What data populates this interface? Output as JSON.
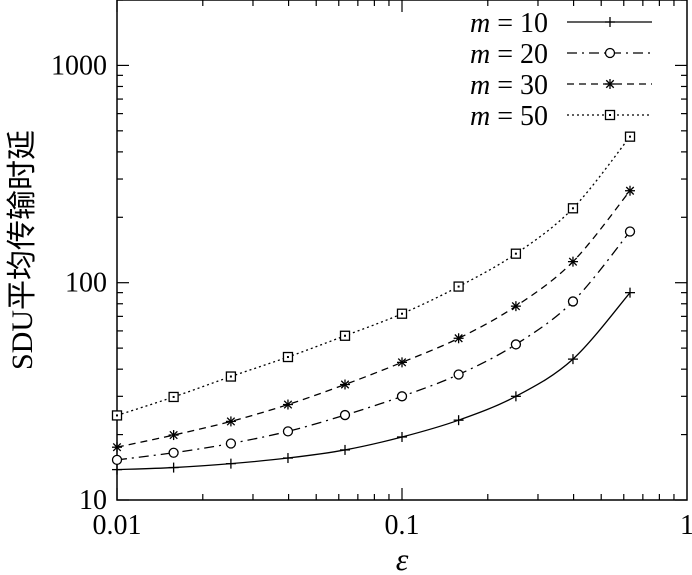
{
  "chart_data": {
    "type": "line",
    "xlabel": "ε",
    "ylabel": "SDU平均传输时延",
    "xscale": "log",
    "yscale": "log",
    "xlim": [
      0.01,
      1
    ],
    "ylim": [
      10,
      2000
    ],
    "xticks": [
      {
        "value": 0.01,
        "label": "0.01"
      },
      {
        "value": 0.1,
        "label": "0.1"
      },
      {
        "value": 1,
        "label": "1"
      }
    ],
    "yticks": [
      {
        "value": 10,
        "label": "10"
      },
      {
        "value": 100,
        "label": "100"
      },
      {
        "value": 1000,
        "label": "1000"
      }
    ],
    "legend_position": "top-right",
    "series": [
      {
        "name": "m = 10",
        "legend_m": "m",
        "legend_value": " = 10",
        "line_style": "solid",
        "marker": "plus",
        "x": [
          0.01,
          0.0158,
          0.0251,
          0.0398,
          0.0631,
          0.1,
          0.158,
          0.251,
          0.398,
          0.631
        ],
        "y": [
          13.8,
          14.1,
          14.7,
          15.6,
          17.0,
          19.5,
          23.3,
          30.0,
          44.5,
          90
        ]
      },
      {
        "name": "m = 20",
        "legend_m": "m",
        "legend_value": " = 20",
        "line_style": "dashdot",
        "marker": "circle",
        "x": [
          0.01,
          0.0158,
          0.0251,
          0.0398,
          0.0631,
          0.1,
          0.158,
          0.251,
          0.398,
          0.631
        ],
        "y": [
          15.3,
          16.5,
          18.2,
          20.7,
          24.6,
          30.0,
          37.8,
          52.0,
          82,
          172
        ]
      },
      {
        "name": "m = 30",
        "legend_m": "m",
        "legend_value": " = 30",
        "line_style": "dashed",
        "marker": "star",
        "x": [
          0.01,
          0.0158,
          0.0251,
          0.0398,
          0.0631,
          0.1,
          0.158,
          0.251,
          0.398,
          0.631
        ],
        "y": [
          17.5,
          19.9,
          23.0,
          27.5,
          34.0,
          43.0,
          55.5,
          78,
          125,
          265
        ]
      },
      {
        "name": "m = 50",
        "legend_m": "m",
        "legend_value": " = 50",
        "line_style": "dotted",
        "marker": "square",
        "x": [
          0.01,
          0.0158,
          0.0251,
          0.0398,
          0.0631,
          0.1,
          0.158,
          0.251,
          0.398,
          0.631
        ],
        "y": [
          24.5,
          29.8,
          37.0,
          45.5,
          57.0,
          72.0,
          96,
          136,
          220,
          470
        ]
      }
    ]
  }
}
